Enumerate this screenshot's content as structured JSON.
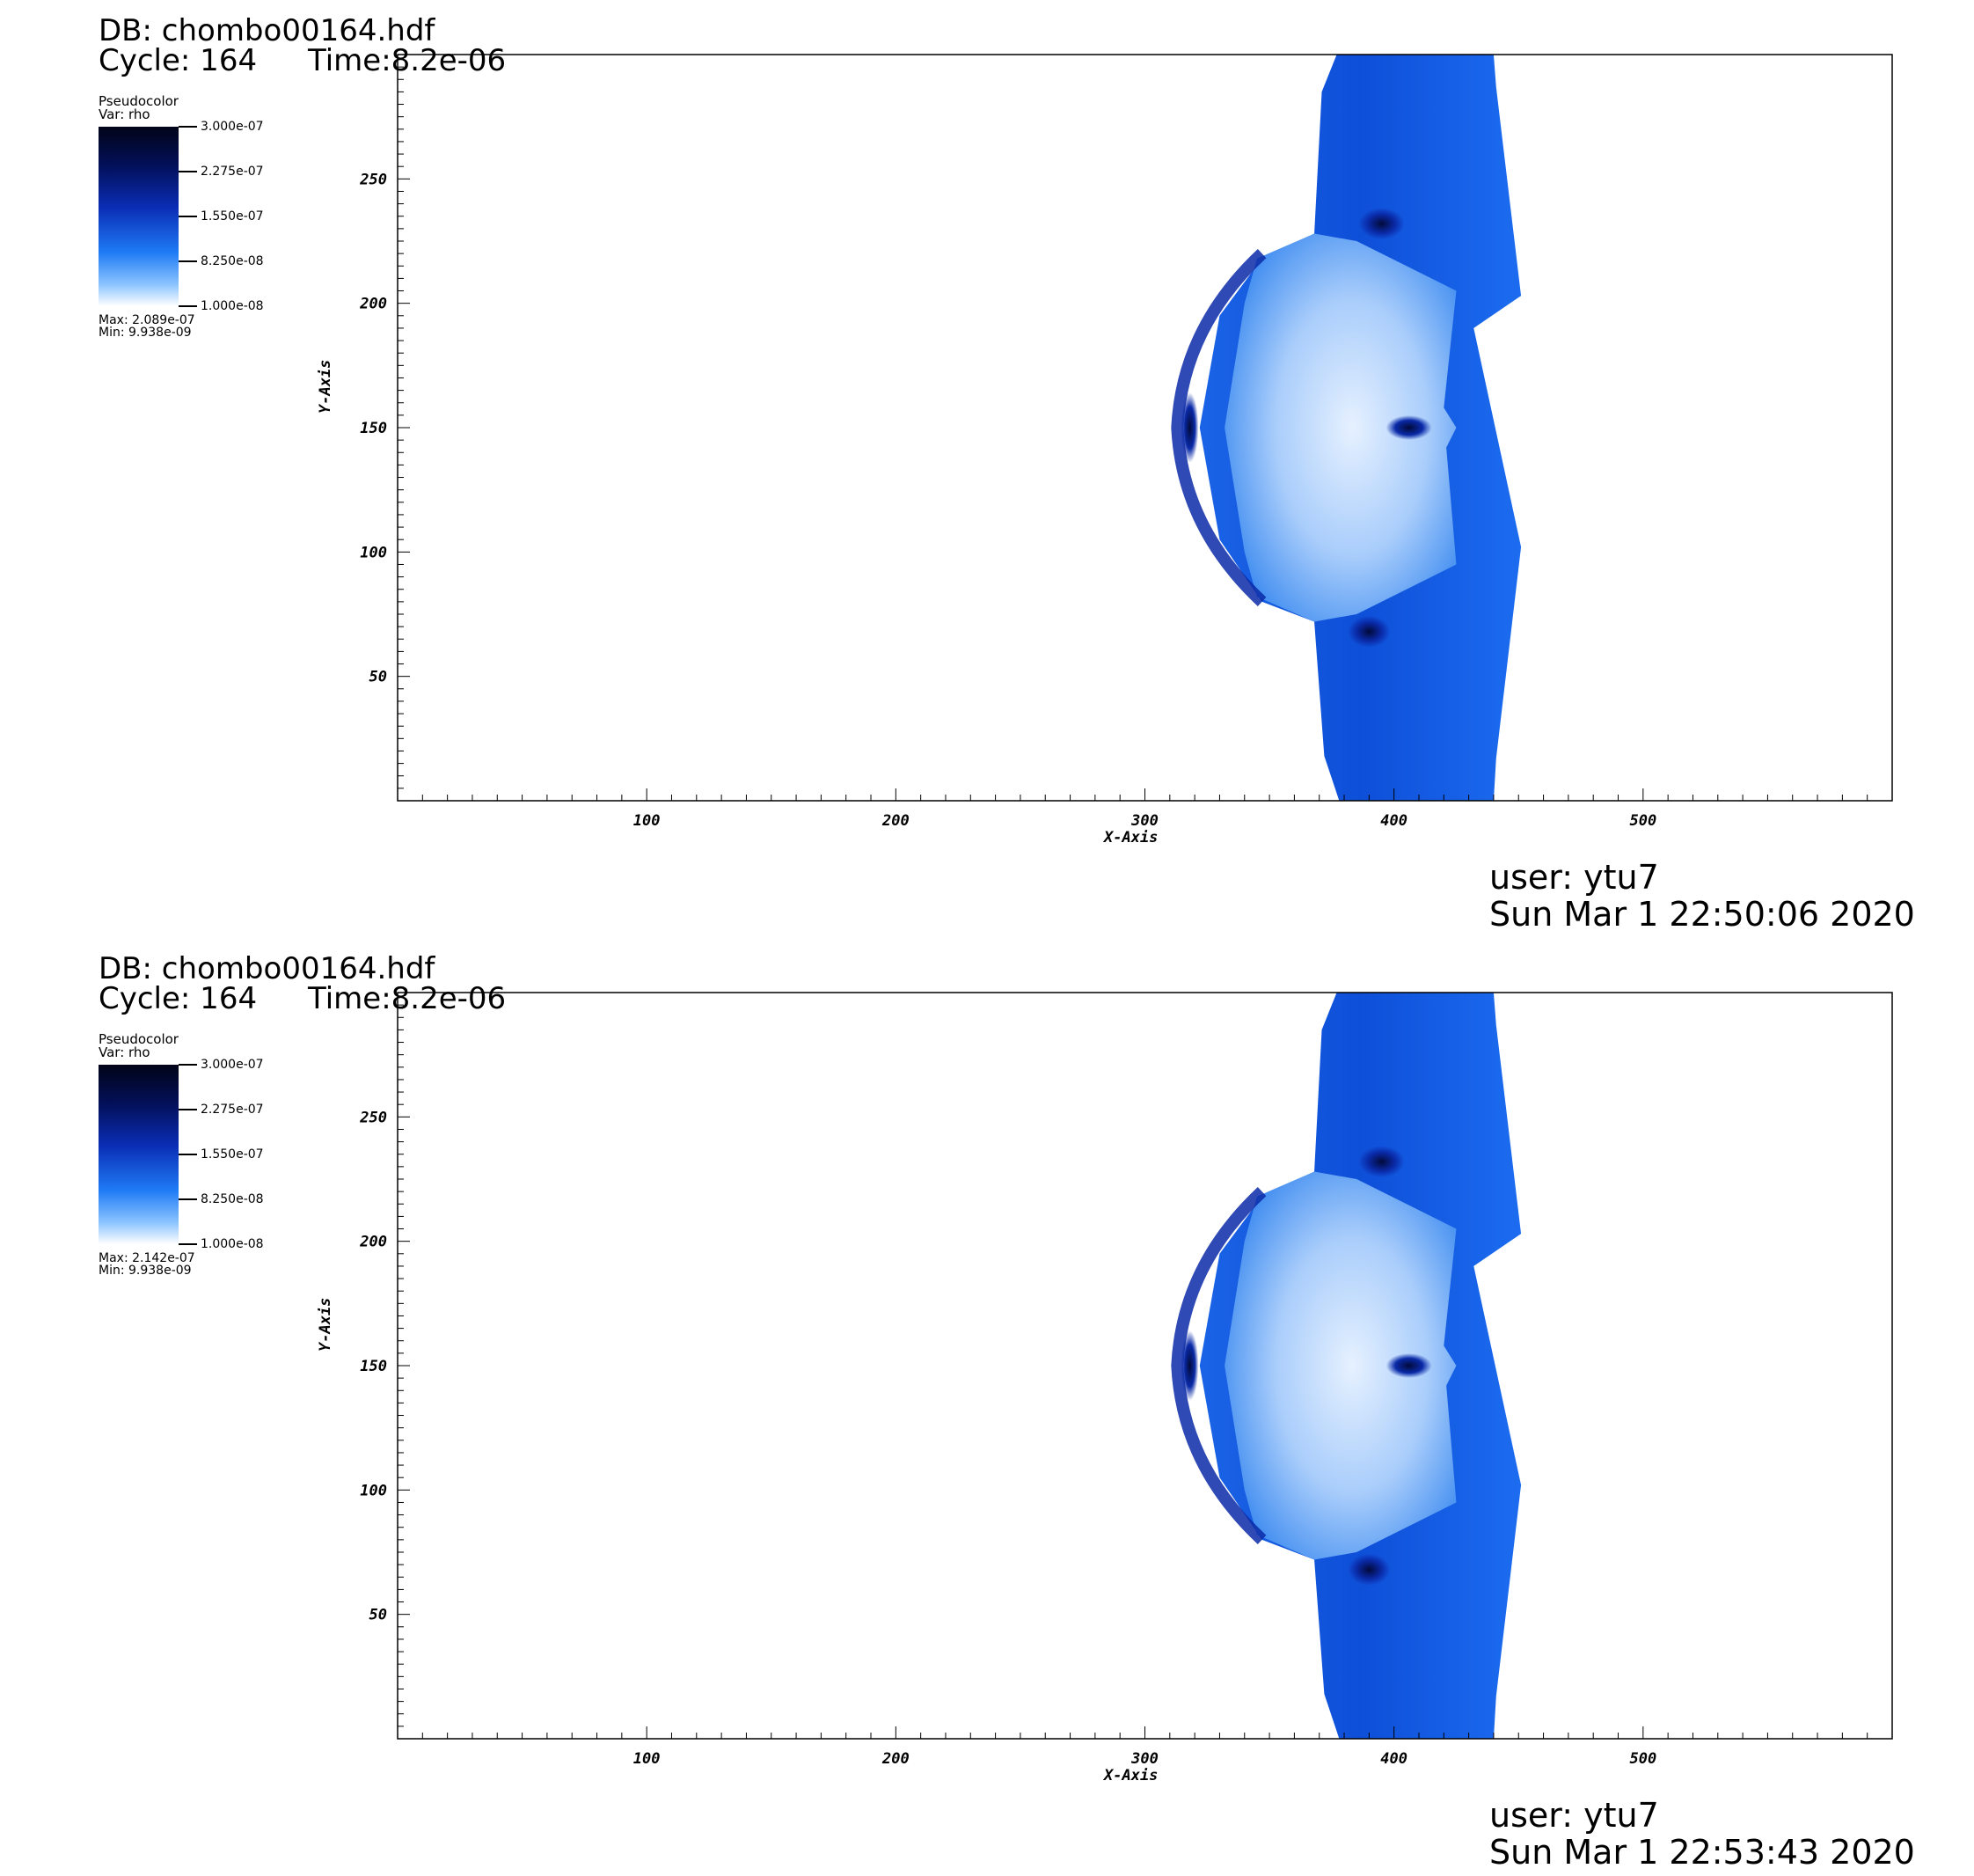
{
  "panels": [
    {
      "db_label": "DB: chombo00164.hdf",
      "cycle_label": "Cycle: 164",
      "time_label": "Time:8.2e-06",
      "legend": {
        "plot_type": "Pseudocolor",
        "var_label": "Var: rho",
        "ticks": [
          "3.000e-07",
          "2.275e-07",
          "1.550e-07",
          "8.250e-08",
          "1.000e-08"
        ],
        "max_label": "Max: 2.089e-07",
        "min_label": "Min: 9.938e-09",
        "colors": [
          "#020418",
          "#03105a",
          "#0a2db5",
          "#1f7bf5",
          "#8cc4ff",
          "#ffffff"
        ]
      },
      "user_label": "user: ytu7",
      "date_label": "Sun Mar  1 22:50:06 2020"
    },
    {
      "db_label": "DB: chombo00164.hdf",
      "cycle_label": "Cycle: 164",
      "time_label": "Time:8.2e-06",
      "legend": {
        "plot_type": "Pseudocolor",
        "var_label": "Var: rho",
        "ticks": [
          "3.000e-07",
          "2.275e-07",
          "1.550e-07",
          "8.250e-08",
          "1.000e-08"
        ],
        "max_label": "Max: 2.142e-07",
        "min_label": "Min: 9.938e-09",
        "colors": [
          "#020418",
          "#03105a",
          "#0a2db5",
          "#1f7bf5",
          "#8cc4ff",
          "#ffffff"
        ]
      },
      "user_label": "user: ytu7",
      "date_label": "Sun Mar  1 22:53:43 2020"
    }
  ],
  "chart_data": [
    {
      "type": "heatmap",
      "variable": "rho",
      "xlabel": "X-Axis",
      "ylabel": "Y-Axis",
      "xlim": [
        0,
        600
      ],
      "ylim": [
        0,
        300
      ],
      "xticks": [
        100,
        200,
        300,
        400,
        500
      ],
      "yticks": [
        50,
        100,
        150,
        200,
        250
      ],
      "colorbar_range": [
        1e-08,
        3e-07
      ],
      "data_range": [
        9.938e-09,
        2.089e-07
      ]
    },
    {
      "type": "heatmap",
      "variable": "rho",
      "xlabel": "X-Axis",
      "ylabel": "Y-Axis",
      "xlim": [
        0,
        600
      ],
      "ylim": [
        0,
        300
      ],
      "xticks": [
        100,
        200,
        300,
        400,
        500
      ],
      "yticks": [
        50,
        100,
        150,
        200,
        250
      ],
      "colorbar_range": [
        1e-08,
        3e-07
      ],
      "data_range": [
        9.938e-09,
        2.142e-07
      ]
    }
  ]
}
